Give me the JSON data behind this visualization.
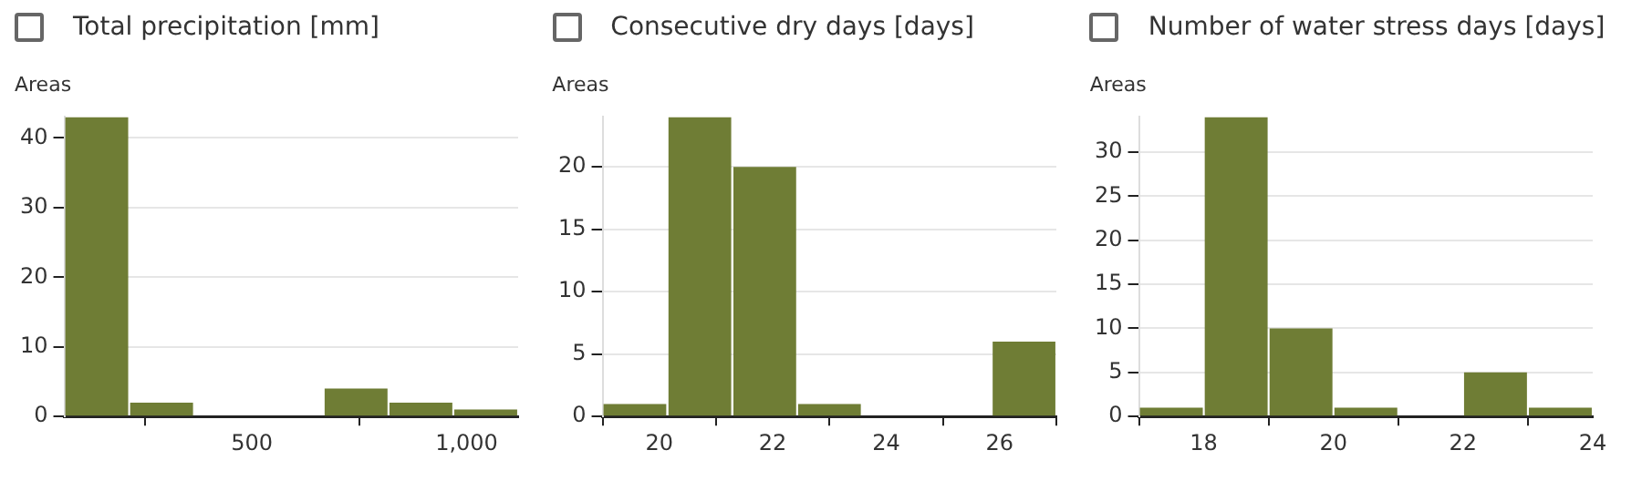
{
  "chart_data": [
    {
      "type": "histogram",
      "title": "Total precipitation [mm]",
      "ylabel": "Areas",
      "bins": [
        63,
        214,
        365,
        667,
        818,
        969,
        1120
      ],
      "values": [
        43,
        2,
        0,
        4,
        2,
        1
      ],
      "color": "#6f7d35",
      "xlim": [
        63,
        1120
      ],
      "xticks": [
        500,
        {
          "value": 1000,
          "label": "1,000"
        }
      ],
      "ylim": [
        0,
        43
      ],
      "yticks": [
        0,
        10,
        20,
        30,
        40
      ],
      "grid": "y"
    },
    {
      "type": "histogram",
      "title": "Consecutive dry days [days]",
      "ylabel": "Areas",
      "bins": [
        19,
        20.14,
        21.29,
        22.43,
        23.57,
        25.86,
        27
      ],
      "values": [
        1,
        24,
        20,
        1,
        0,
        6
      ],
      "color": "#6f7d35",
      "xlim": [
        19,
        27
      ],
      "xticks": [
        20,
        22,
        24,
        26
      ],
      "ylim": [
        0,
        24
      ],
      "yticks": [
        0,
        5,
        10,
        15,
        20
      ],
      "grid": "y"
    },
    {
      "type": "histogram",
      "title": "Number of water stress days [days]",
      "ylabel": "Areas",
      "bins": [
        17,
        18,
        19,
        20,
        21,
        22,
        23,
        24
      ],
      "values": [
        1,
        34,
        10,
        1,
        0,
        5,
        1
      ],
      "color": "#6f7d35",
      "xlim": [
        17,
        24
      ],
      "xticks": [
        18,
        20,
        22,
        24
      ],
      "ylim": [
        0,
        34
      ],
      "yticks": [
        0,
        5,
        10,
        15,
        20,
        25,
        30
      ],
      "grid": "y"
    }
  ]
}
